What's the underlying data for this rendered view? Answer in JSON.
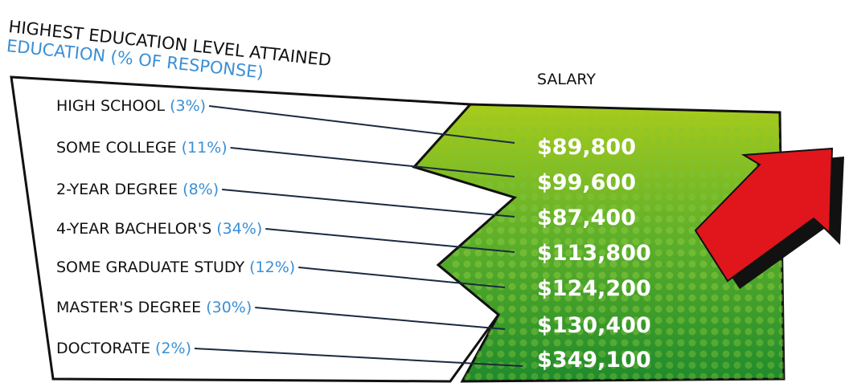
{
  "header": {
    "title": "HIGHEST EDUCATION LEVEL ATTAINED",
    "subtitle": "EDUCATION (% OF RESPONSE)"
  },
  "salary_heading": "SALARY",
  "rows": [
    {
      "level": "HIGH SCHOOL",
      "share": "(3%)",
      "salary": "$89,800"
    },
    {
      "level": "SOME COLLEGE",
      "share": "(11%)",
      "salary": "$99,600"
    },
    {
      "level": "2-YEAR DEGREE",
      "share": "(8%)",
      "salary": "$87,400"
    },
    {
      "level": "4-YEAR BACHELOR'S",
      "share": "(34%)",
      "salary": "$113,800"
    },
    {
      "level": "SOME GRADUATE STUDY",
      "share": "(12%)",
      "salary": "$124,200"
    },
    {
      "level": "MASTER'S DEGREE",
      "share": "(30%)",
      "salary": "$130,400"
    },
    {
      "level": "DOCTORATE",
      "share": "(2%)",
      "salary": "$349,100"
    }
  ]
}
